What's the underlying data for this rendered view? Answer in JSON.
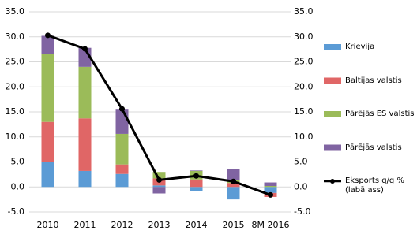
{
  "chart_data": {
    "type": "bar",
    "stacked": true,
    "categories": [
      "2010",
      "2011",
      "2012",
      "2013",
      "2014",
      "2015",
      "8M 2016"
    ],
    "series": [
      {
        "name": "Krievija",
        "color": "#5b9bd5",
        "values": [
          5.0,
          3.2,
          2.6,
          0.3,
          -0.8,
          -2.5,
          -1.2
        ]
      },
      {
        "name": "Baltijas valstis",
        "color": "#e06666",
        "values": [
          8.0,
          10.5,
          1.9,
          1.4,
          1.5,
          0.8,
          -0.8
        ]
      },
      {
        "name": "Pārējās ES valstis",
        "color": "#9bbb59",
        "values": [
          13.5,
          10.3,
          6.1,
          1.3,
          1.7,
          0.5,
          0.2
        ]
      },
      {
        "name": "Pārējās valstis",
        "color": "#8064a2",
        "values": [
          3.7,
          3.8,
          5.0,
          -1.3,
          0.1,
          2.3,
          0.7
        ]
      },
      {
        "name": "Eksports g/g % (labā ass)",
        "type": "line",
        "axis": "y2",
        "color": "#000000",
        "values": [
          30.3,
          27.6,
          15.6,
          1.4,
          2.2,
          1.1,
          -1.6
        ]
      }
    ],
    "ylim": [
      -5,
      35
    ],
    "yticks": [
      {
        "value": -5,
        "label": "-5.0"
      },
      {
        "value": 0,
        "label": "0.0"
      },
      {
        "value": 5,
        "label": "5.0"
      },
      {
        "value": 10,
        "label": "10.0"
      },
      {
        "value": 15,
        "label": "15.0"
      },
      {
        "value": 20,
        "label": "20.0"
      },
      {
        "value": 25,
        "label": "25.0"
      },
      {
        "value": 30,
        "label": "30.0"
      },
      {
        "value": 35,
        "label": "35.0"
      }
    ],
    "y2lim": [
      -5,
      35
    ],
    "y2ticks": [
      {
        "value": -5,
        "label": "-5.0"
      },
      {
        "value": 0,
        "label": "0.0"
      },
      {
        "value": 5,
        "label": "5.0"
      },
      {
        "value": 10,
        "label": "10.0"
      },
      {
        "value": 15,
        "label": "15.0"
      },
      {
        "value": 20,
        "label": "20.0"
      },
      {
        "value": 25,
        "label": "25.0"
      },
      {
        "value": 30,
        "label": "30.0"
      },
      {
        "value": 35,
        "label": "35.0"
      }
    ],
    "grid": true,
    "legend": "right"
  }
}
